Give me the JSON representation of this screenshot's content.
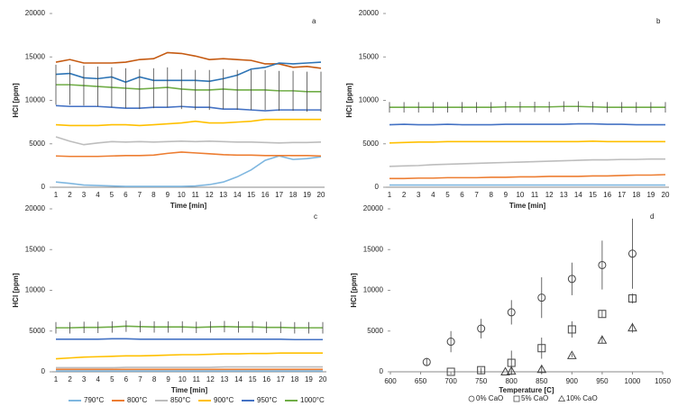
{
  "chart_data": [
    {
      "type": "line",
      "label": "a",
      "xlabel": "Time [min]",
      "ylabel": "HCl [ppm]",
      "categories": [
        1,
        2,
        3,
        4,
        5,
        6,
        7,
        8,
        9,
        10,
        11,
        12,
        13,
        14,
        15,
        16,
        17,
        18,
        19,
        20
      ],
      "ylim": [
        0,
        20000
      ],
      "yticks": [
        0,
        5000,
        10000,
        15000,
        20000
      ],
      "series": [
        {
          "color": "#7fb7e0",
          "values": [
            600,
            450,
            250,
            200,
            150,
            100,
            100,
            100,
            100,
            100,
            150,
            300,
            600,
            1200,
            2000,
            3100,
            3600,
            3200,
            3300,
            3500
          ]
        },
        {
          "color": "#ed7d31",
          "values": [
            3600,
            3550,
            3550,
            3550,
            3600,
            3650,
            3650,
            3700,
            3900,
            4050,
            3950,
            3850,
            3750,
            3700,
            3700,
            3650,
            3650,
            3650,
            3650,
            3600
          ]
        },
        {
          "color": "#bdbdbd",
          "values": [
            5800,
            5300,
            4900,
            5100,
            5250,
            5200,
            5250,
            5200,
            5250,
            5300,
            5250,
            5300,
            5250,
            5200,
            5200,
            5150,
            5100,
            5150,
            5150,
            5200
          ]
        },
        {
          "color": "#ffc000",
          "values": [
            7200,
            7100,
            7100,
            7100,
            7200,
            7200,
            7100,
            7200,
            7300,
            7400,
            7600,
            7400,
            7400,
            7500,
            7600,
            7800,
            7800,
            7800,
            7800,
            7800
          ]
        },
        {
          "color": "#4472c4",
          "values": [
            9400,
            9300,
            9300,
            9300,
            9200,
            9100,
            9100,
            9200,
            9200,
            9300,
            9200,
            9200,
            9000,
            9000,
            8900,
            8800,
            8900,
            8900,
            8900,
            8900
          ]
        },
        {
          "color": "#c55a11",
          "values": [
            14400,
            14700,
            14300,
            14300,
            14300,
            14400,
            14700,
            14800,
            15500,
            15400,
            15100,
            14700,
            14800,
            14700,
            14600,
            14200,
            14200,
            13800,
            13900,
            13700
          ]
        },
        {
          "color": "#2e75b6",
          "values": [
            13000,
            13100,
            12600,
            12500,
            12700,
            12100,
            12700,
            12300,
            12300,
            12300,
            12300,
            12200,
            12500,
            12900,
            13600,
            13800,
            14300,
            14200,
            14300,
            14400
          ]
        },
        {
          "color": "#70ad47",
          "values": [
            11800,
            11800,
            11700,
            11600,
            11500,
            11400,
            11300,
            11400,
            11500,
            11300,
            11200,
            11200,
            11300,
            11200,
            11200,
            11200,
            11100,
            11100,
            11000,
            11000
          ],
          "errors": [
            2300,
            2300,
            2300,
            2300,
            2300,
            2300,
            2300,
            2300,
            2300,
            2300,
            2300,
            2300,
            2300,
            2300,
            2300,
            2300,
            2300,
            2300,
            2300,
            2300
          ]
        }
      ]
    },
    {
      "type": "line",
      "label": "b",
      "xlabel": "Time [min]",
      "ylabel": "HCl [ppm]",
      "categories": [
        1,
        2,
        3,
        4,
        5,
        6,
        7,
        8,
        9,
        10,
        11,
        12,
        13,
        14,
        15,
        16,
        17,
        18,
        19,
        20
      ],
      "ylim": [
        0,
        20000
      ],
      "yticks": [
        0,
        5000,
        10000,
        15000,
        20000
      ],
      "series": [
        {
          "color": "#7fb7e0",
          "values": [
            250,
            250,
            250,
            250,
            250,
            250,
            250,
            250,
            250,
            250,
            250,
            250,
            250,
            250,
            250,
            250,
            250,
            250,
            250,
            250
          ]
        },
        {
          "color": "#ed7d31",
          "values": [
            1000,
            1000,
            1050,
            1050,
            1100,
            1100,
            1100,
            1150,
            1150,
            1200,
            1200,
            1250,
            1250,
            1250,
            1300,
            1300,
            1350,
            1400,
            1400,
            1450
          ]
        },
        {
          "color": "#bdbdbd",
          "values": [
            2400,
            2450,
            2500,
            2600,
            2650,
            2700,
            2750,
            2800,
            2850,
            2900,
            2950,
            3000,
            3050,
            3100,
            3150,
            3150,
            3200,
            3200,
            3250,
            3250
          ]
        },
        {
          "color": "#ffc000",
          "values": [
            5100,
            5150,
            5200,
            5200,
            5250,
            5250,
            5250,
            5250,
            5250,
            5250,
            5250,
            5250,
            5250,
            5250,
            5300,
            5250,
            5250,
            5250,
            5250,
            5250
          ]
        },
        {
          "color": "#4472c4",
          "values": [
            7200,
            7250,
            7200,
            7200,
            7250,
            7200,
            7200,
            7200,
            7250,
            7250,
            7250,
            7250,
            7250,
            7300,
            7300,
            7250,
            7250,
            7200,
            7200,
            7200
          ]
        },
        {
          "color": "#70ad47",
          "values": [
            9200,
            9200,
            9200,
            9200,
            9200,
            9200,
            9200,
            9200,
            9250,
            9250,
            9250,
            9250,
            9300,
            9300,
            9250,
            9200,
            9200,
            9200,
            9200,
            9200
          ],
          "errors": [
            600,
            600,
            600,
            600,
            600,
            600,
            600,
            600,
            600,
            600,
            600,
            600,
            600,
            600,
            600,
            600,
            600,
            600,
            600,
            600
          ]
        }
      ]
    },
    {
      "type": "line",
      "label": "c",
      "xlabel": "Time [min]",
      "ylabel": "HCl [ppm]",
      "legend": "bottom",
      "categories": [
        1,
        2,
        3,
        4,
        5,
        6,
        7,
        8,
        9,
        10,
        11,
        12,
        13,
        14,
        15,
        16,
        17,
        18,
        19,
        20
      ],
      "ylim": [
        0,
        20000
      ],
      "yticks": [
        0,
        5000,
        10000,
        15000,
        20000
      ],
      "series": [
        {
          "name": "790°C",
          "color": "#7fb7e0",
          "values": [
            100,
            100,
            100,
            100,
            100,
            100,
            100,
            100,
            100,
            100,
            100,
            100,
            100,
            100,
            100,
            100,
            100,
            100,
            100,
            100
          ]
        },
        {
          "name": "800°C",
          "color": "#ed7d31",
          "values": [
            300,
            300,
            300,
            300,
            300,
            300,
            300,
            300,
            300,
            300,
            300,
            300,
            300,
            300,
            300,
            300,
            300,
            300,
            300,
            300
          ]
        },
        {
          "name": "850°C",
          "color": "#bdbdbd",
          "values": [
            500,
            500,
            500,
            500,
            500,
            550,
            550,
            550,
            550,
            550,
            550,
            550,
            600,
            600,
            600,
            600,
            600,
            600,
            600,
            600
          ]
        },
        {
          "name": "900°C",
          "color": "#ffc000",
          "values": [
            1600,
            1700,
            1800,
            1850,
            1900,
            1950,
            1950,
            2000,
            2050,
            2100,
            2100,
            2150,
            2200,
            2200,
            2250,
            2250,
            2300,
            2300,
            2300,
            2300
          ]
        },
        {
          "name": "950°C",
          "color": "#4472c4",
          "values": [
            4000,
            4000,
            4000,
            4000,
            4050,
            4050,
            4000,
            4000,
            4000,
            4000,
            4000,
            4000,
            4000,
            4000,
            4000,
            4000,
            4000,
            3950,
            3950,
            3950
          ]
        },
        {
          "name": "1000°C",
          "color": "#70ad47",
          "values": [
            5400,
            5400,
            5450,
            5450,
            5500,
            5600,
            5550,
            5500,
            5500,
            5500,
            5450,
            5500,
            5550,
            5500,
            5500,
            5450,
            5450,
            5400,
            5400,
            5400
          ],
          "errors": [
            700,
            700,
            700,
            700,
            700,
            700,
            700,
            700,
            700,
            700,
            700,
            700,
            700,
            700,
            700,
            700,
            700,
            700,
            700,
            700
          ]
        }
      ]
    },
    {
      "type": "scatter",
      "label": "d",
      "xlabel": "Temperature [C]",
      "ylabel": "HCl [ppm]",
      "legend": "bottom",
      "xlim": [
        600,
        1050
      ],
      "xticks": [
        600,
        650,
        700,
        750,
        800,
        850,
        900,
        950,
        1000,
        1050
      ],
      "ylim": [
        0,
        20000
      ],
      "yticks": [
        0,
        5000,
        10000,
        15000,
        20000
      ],
      "series": [
        {
          "name": "0% CaO",
          "marker": "circle",
          "color": "#444444",
          "x": [
            660,
            700,
            750,
            800,
            850,
            900,
            950,
            1000
          ],
          "values": [
            1200,
            3700,
            5300,
            7300,
            9100,
            11400,
            13100,
            14500
          ],
          "errors": [
            500,
            1300,
            1200,
            1500,
            2500,
            2000,
            3000,
            4300
          ]
        },
        {
          "name": "5% CaO",
          "marker": "square",
          "color": "#444444",
          "x": [
            700,
            750,
            800,
            850,
            900,
            950,
            1000
          ],
          "values": [
            0,
            200,
            1100,
            2900,
            5200,
            7100,
            9000
          ],
          "errors": [
            0,
            300,
            1500,
            1300,
            1000,
            400,
            600
          ]
        },
        {
          "name": "10% CaO",
          "marker": "triangle",
          "color": "#444444",
          "x": [
            790,
            800,
            850,
            900,
            950,
            1000
          ],
          "values": [
            0,
            100,
            300,
            2000,
            3900,
            5400
          ],
          "errors": [
            0,
            0,
            500,
            200,
            400,
            600
          ]
        }
      ]
    }
  ]
}
